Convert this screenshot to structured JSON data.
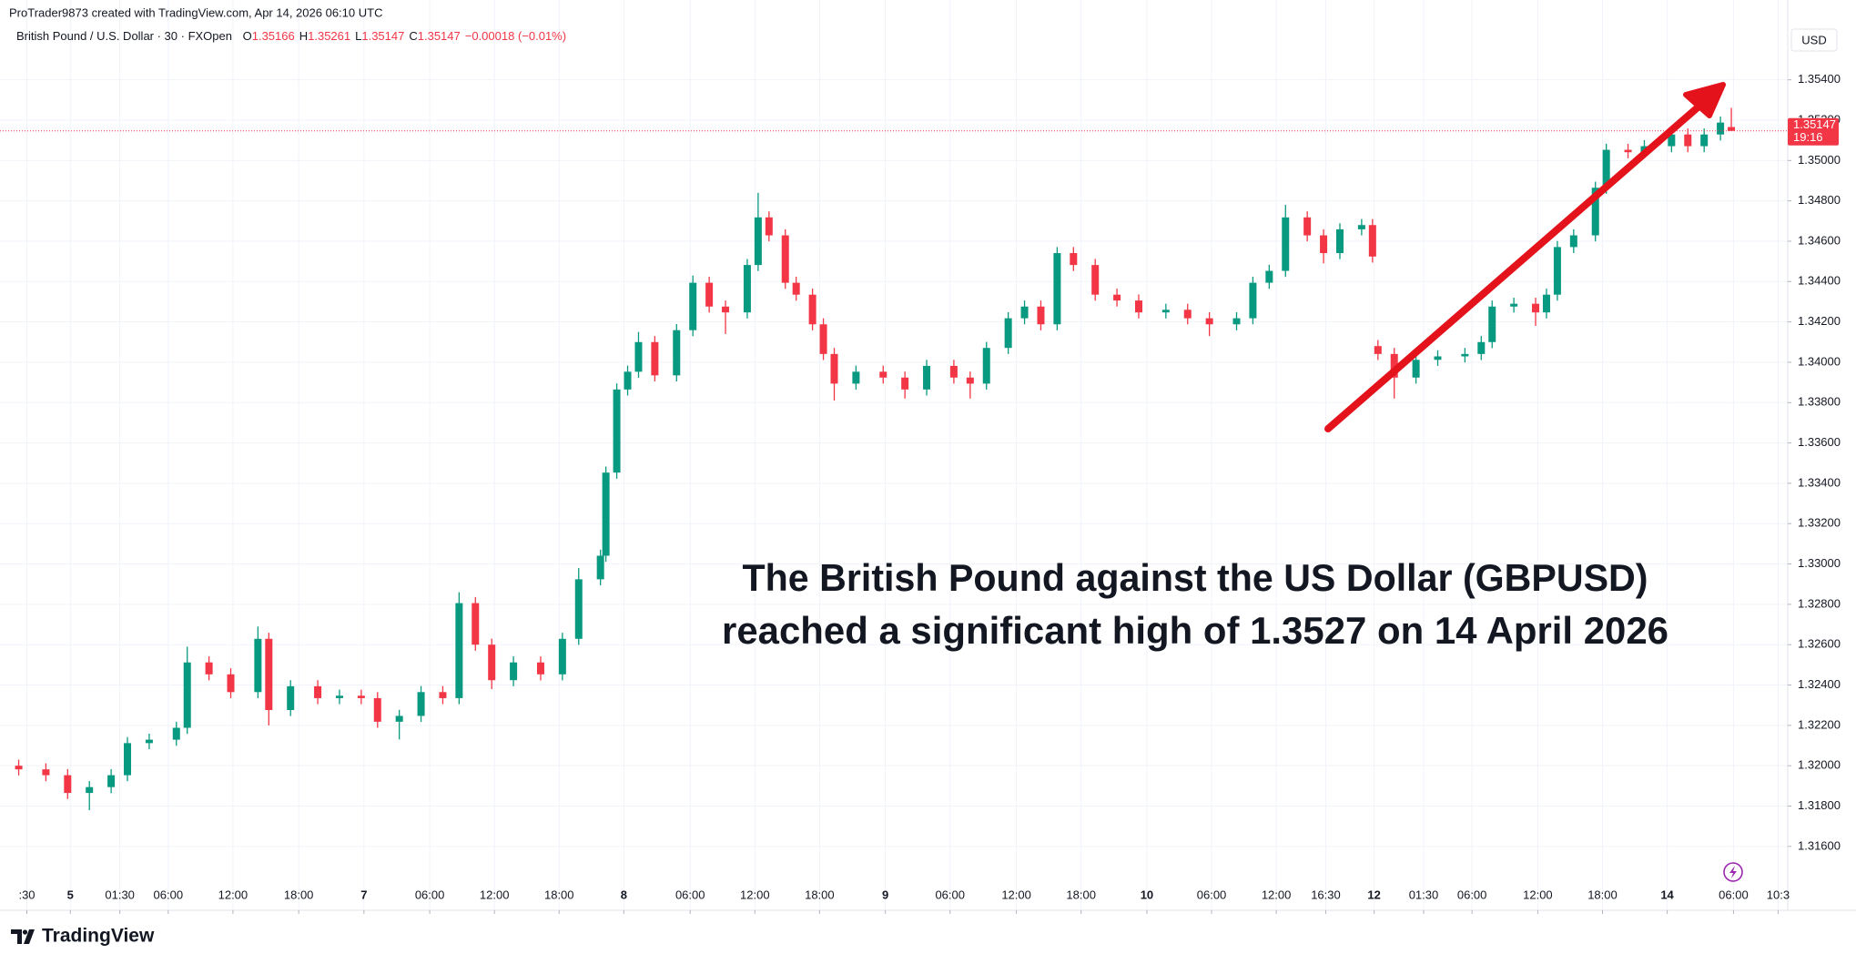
{
  "chart_data": {
    "type": "candlestick",
    "attribution": "ProTrader9873 created with TradingView.com, Apr 14, 2026 06:10 UTC",
    "symbol": "British Pound / U.S. Dollar · 30 · FXOpen",
    "legend_ohlc": [
      {
        "key": "O",
        "text": "1.35166"
      },
      {
        "key": "H",
        "text": "1.35261"
      },
      {
        "key": "L",
        "text": "1.35147"
      },
      {
        "key": "C",
        "text": "1.35147"
      }
    ],
    "legend_change": "−0.00018 (−0.01%)",
    "currency": "USD",
    "annotation": [
      "The British Pound against the US Dollar (GBPUSD)",
      "reached a significant high of 1.3527 on 14 April 2026"
    ],
    "brand": "TradingView",
    "up_color": "#089981",
    "down_color": "#f23645",
    "grid": true,
    "last_price": 1.35147,
    "countdown": "19:16",
    "xlim": [
      -1.7,
      324.2
    ],
    "ylim": [
      1.3143,
      1.3569
    ],
    "yticks": [
      {
        "value": 1.316,
        "label": "1.31600"
      },
      {
        "value": 1.318,
        "label": "1.31800"
      },
      {
        "value": 1.32,
        "label": "1.32000"
      },
      {
        "value": 1.322,
        "label": "1.32200"
      },
      {
        "value": 1.324,
        "label": "1.32400"
      },
      {
        "value": 1.326,
        "label": "1.32600"
      },
      {
        "value": 1.328,
        "label": "1.32800"
      },
      {
        "value": 1.33,
        "label": "1.33000"
      },
      {
        "value": 1.332,
        "label": "1.33200"
      },
      {
        "value": 1.334,
        "label": "1.33400"
      },
      {
        "value": 1.336,
        "label": "1.33600"
      },
      {
        "value": 1.338,
        "label": "1.33800"
      },
      {
        "value": 1.34,
        "label": "1.34000"
      },
      {
        "value": 1.342,
        "label": "1.34200"
      },
      {
        "value": 1.344,
        "label": "1.34400"
      },
      {
        "value": 1.346,
        "label": "1.34600"
      },
      {
        "value": 1.348,
        "label": "1.34800"
      },
      {
        "value": 1.35,
        "label": "1.35000"
      },
      {
        "value": 1.352,
        "label": "1.35200"
      },
      {
        "value": 1.354,
        "label": "1.35400"
      }
    ],
    "xticks": [
      {
        "value": 1.5,
        "label": ":30"
      },
      {
        "value": 9.5,
        "label": "5"
      },
      {
        "value": 18.6,
        "label": "01:30"
      },
      {
        "value": 27.5,
        "label": "06:00"
      },
      {
        "value": 39.4,
        "label": "12:00"
      },
      {
        "value": 51.5,
        "label": "18:00"
      },
      {
        "value": 63.5,
        "label": "7"
      },
      {
        "value": 75.6,
        "label": "06:00"
      },
      {
        "value": 87.5,
        "label": "12:00"
      },
      {
        "value": 99.4,
        "label": "18:00"
      },
      {
        "value": 111.3,
        "label": "8"
      },
      {
        "value": 123.5,
        "label": "06:00"
      },
      {
        "value": 135.4,
        "label": "12:00"
      },
      {
        "value": 147.3,
        "label": "18:00"
      },
      {
        "value": 159.4,
        "label": "9"
      },
      {
        "value": 171.3,
        "label": "06:00"
      },
      {
        "value": 183.5,
        "label": "12:00"
      },
      {
        "value": 195.4,
        "label": "18:00"
      },
      {
        "value": 207.5,
        "label": "10"
      },
      {
        "value": 219.4,
        "label": "06:00"
      },
      {
        "value": 231.3,
        "label": "12:00"
      },
      {
        "value": 240.4,
        "label": "16:30"
      },
      {
        "value": 249.3,
        "label": "12"
      },
      {
        "value": 258.4,
        "label": "01:30"
      },
      {
        "value": 267.3,
        "label": "06:00"
      },
      {
        "value": 279.4,
        "label": "12:00"
      },
      {
        "value": 291.3,
        "label": "18:00"
      },
      {
        "value": 303.2,
        "label": "14"
      },
      {
        "value": 315.4,
        "label": "06:00"
      },
      {
        "value": 323.6,
        "label": "10:3"
      }
    ],
    "x": [
      0,
      5,
      9,
      13,
      17,
      20,
      24,
      29,
      31,
      35,
      39,
      44,
      46,
      50,
      55,
      59,
      63,
      66,
      70,
      74,
      78,
      81,
      84,
      87,
      91,
      96,
      100,
      103,
      107,
      108,
      110,
      112,
      114,
      117,
      121,
      124,
      127,
      130,
      134,
      136,
      138,
      141,
      143,
      146,
      148,
      150,
      154,
      159,
      163,
      167,
      172,
      175,
      178,
      182,
      185,
      188,
      191,
      194,
      198,
      202,
      206,
      211,
      215,
      219,
      224,
      227,
      230,
      233,
      237,
      240,
      243,
      247,
      249,
      250,
      253,
      257,
      261,
      266,
      269,
      271,
      275,
      279,
      281,
      283,
      286,
      290,
      292,
      296,
      299,
      304,
      307,
      310,
      313,
      315
    ],
    "open": [
      1.32,
      1.31982,
      1.31953,
      1.31865,
      1.31894,
      1.31953,
      1.32112,
      1.32129,
      1.32188,
      1.32512,
      1.32453,
      1.32365,
      1.32629,
      1.32276,
      1.32394,
      1.32335,
      1.32347,
      1.32335,
      1.32218,
      1.32247,
      1.32365,
      1.32335,
      1.32806,
      1.326,
      1.32424,
      1.32512,
      1.32453,
      1.32629,
      1.32924,
      1.33041,
      1.33453,
      1.33865,
      1.33953,
      1.341,
      1.33935,
      1.34159,
      1.34394,
      1.34276,
      1.34247,
      1.34482,
      1.34718,
      1.34629,
      1.34394,
      1.34335,
      1.34188,
      1.34041,
      1.33894,
      1.33953,
      1.33924,
      1.33865,
      1.33982,
      1.33924,
      1.33894,
      1.34071,
      1.34218,
      1.34276,
      1.34188,
      1.34541,
      1.34482,
      1.34335,
      1.34306,
      1.34247,
      1.3426,
      1.34218,
      1.34188,
      1.34218,
      1.34394,
      1.34453,
      1.34718,
      1.34629,
      1.34541,
      1.34659,
      1.3468,
      1.3408,
      1.34041,
      1.33924,
      1.34012,
      1.34029,
      1.34041,
      1.341,
      1.34276,
      1.3429,
      1.34247,
      1.34335,
      1.34571,
      1.34629,
      1.34865,
      1.35053,
      1.35041,
      1.35071,
      1.35129,
      1.35071,
      1.35129,
      1.35166
    ],
    "high": [
      1.3203,
      1.32012,
      1.31983,
      1.31924,
      1.31983,
      1.32142,
      1.32159,
      1.32218,
      1.3259,
      1.32542,
      1.32483,
      1.3269,
      1.32659,
      1.32424,
      1.32424,
      1.32377,
      1.32377,
      1.32365,
      1.32277,
      1.32395,
      1.32395,
      1.3286,
      1.32836,
      1.3263,
      1.32542,
      1.32542,
      1.32659,
      1.3298,
      1.33071,
      1.33483,
      1.33895,
      1.33983,
      1.3415,
      1.3413,
      1.34189,
      1.3443,
      1.34424,
      1.34306,
      1.34512,
      1.3484,
      1.34748,
      1.34659,
      1.34424,
      1.34365,
      1.34218,
      1.34071,
      1.33983,
      1.33983,
      1.33954,
      1.34012,
      1.34012,
      1.33954,
      1.34101,
      1.34248,
      1.34306,
      1.34306,
      1.34571,
      1.34571,
      1.34512,
      1.34365,
      1.34336,
      1.3429,
      1.3429,
      1.34248,
      1.34248,
      1.34424,
      1.34483,
      1.3478,
      1.34748,
      1.34659,
      1.34689,
      1.3471,
      1.3471,
      1.3411,
      1.34071,
      1.34042,
      1.34059,
      1.34071,
      1.3413,
      1.34306,
      1.3432,
      1.3432,
      1.34365,
      1.34601,
      1.34659,
      1.34895,
      1.35083,
      1.35083,
      1.35101,
      1.35159,
      1.35159,
      1.35159,
      1.35218,
      1.35261
    ],
    "low": [
      1.31952,
      1.31923,
      1.31835,
      1.3178,
      1.31864,
      1.31923,
      1.32082,
      1.32099,
      1.32158,
      1.32423,
      1.32335,
      1.32335,
      1.322,
      1.32246,
      1.32305,
      1.32305,
      1.32305,
      1.32188,
      1.3213,
      1.32217,
      1.32305,
      1.32305,
      1.3257,
      1.3238,
      1.32394,
      1.32423,
      1.32423,
      1.32599,
      1.32894,
      1.33011,
      1.33423,
      1.33835,
      1.33923,
      1.33905,
      1.33905,
      1.34129,
      1.34246,
      1.3414,
      1.34217,
      1.34452,
      1.34599,
      1.34364,
      1.34305,
      1.34158,
      1.34011,
      1.3381,
      1.33864,
      1.33894,
      1.3382,
      1.33835,
      1.33894,
      1.3382,
      1.33864,
      1.34041,
      1.34188,
      1.34158,
      1.34158,
      1.34452,
      1.34305,
      1.34276,
      1.34217,
      1.34217,
      1.34188,
      1.3413,
      1.34158,
      1.34188,
      1.34364,
      1.34423,
      1.34599,
      1.3449,
      1.34511,
      1.34629,
      1.34494,
      1.34011,
      1.3382,
      1.33894,
      1.33982,
      1.33999,
      1.34011,
      1.3407,
      1.34246,
      1.3418,
      1.34217,
      1.34305,
      1.34541,
      1.34599,
      1.34835,
      1.35011,
      1.35011,
      1.35041,
      1.35041,
      1.35041,
      1.35099,
      1.35147
    ],
    "close": [
      1.31982,
      1.31953,
      1.31865,
      1.31894,
      1.31953,
      1.32112,
      1.32129,
      1.32188,
      1.32512,
      1.32453,
      1.32365,
      1.32629,
      1.32276,
      1.32394,
      1.32335,
      1.32347,
      1.32335,
      1.32218,
      1.32247,
      1.32365,
      1.32335,
      1.32806,
      1.326,
      1.32424,
      1.32512,
      1.32453,
      1.32629,
      1.32924,
      1.33041,
      1.33453,
      1.33865,
      1.33953,
      1.341,
      1.33935,
      1.34159,
      1.34394,
      1.34276,
      1.34247,
      1.34482,
      1.34718,
      1.34629,
      1.34394,
      1.34335,
      1.34188,
      1.34041,
      1.33894,
      1.33953,
      1.33924,
      1.33865,
      1.33982,
      1.33924,
      1.33894,
      1.34071,
      1.34218,
      1.34276,
      1.34188,
      1.34541,
      1.34482,
      1.34335,
      1.34306,
      1.34247,
      1.3426,
      1.34218,
      1.34188,
      1.34218,
      1.34394,
      1.34453,
      1.34718,
      1.34629,
      1.34541,
      1.34659,
      1.3468,
      1.34524,
      1.34041,
      1.33924,
      1.34012,
      1.34029,
      1.34041,
      1.341,
      1.34276,
      1.3429,
      1.34247,
      1.34335,
      1.34571,
      1.34629,
      1.34865,
      1.35053,
      1.35041,
      1.35071,
      1.35129,
      1.35071,
      1.35129,
      1.35188,
      1.35147
    ]
  }
}
